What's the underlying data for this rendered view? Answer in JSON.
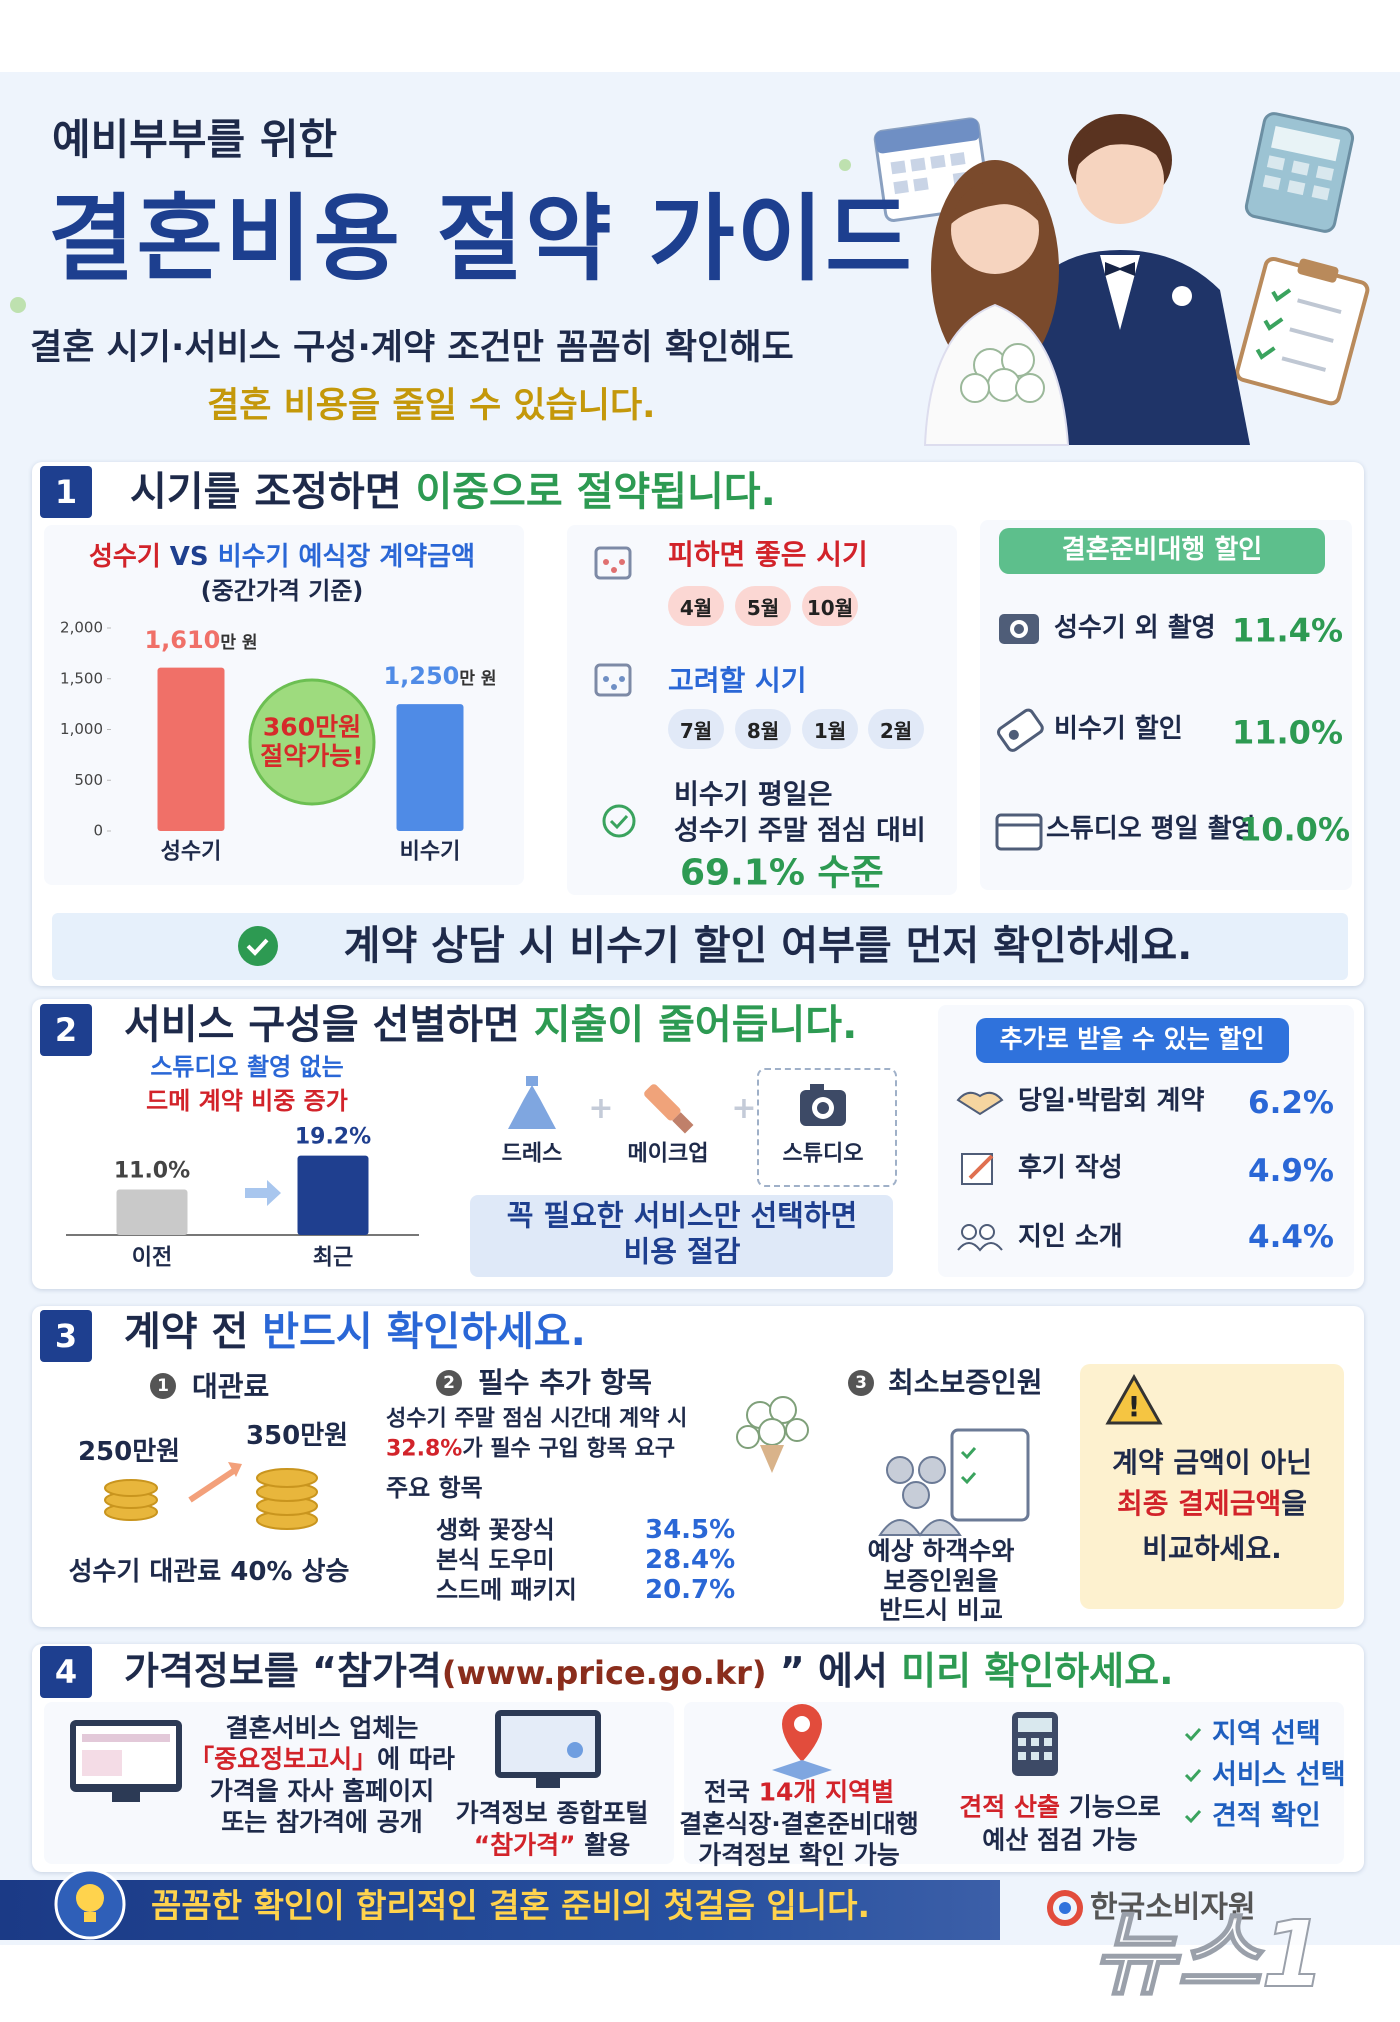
{
  "header": {
    "kicker": "예비부부를 위한",
    "title": "결혼비용 절약 가이드",
    "subtitle": [
      "결혼 시기·서비스 구성·계약 조건만 꼼꼼히 확인해도",
      "결혼 비용을 줄일 수 있습니다."
    ]
  },
  "section1": {
    "number": "1",
    "title": [
      "시기를 조정하면 ",
      "이중으로 절약됩니다."
    ],
    "chart": {
      "type": "bar",
      "title": [
        "성수기",
        " VS ",
        "비수기",
        " 예식장 계약금액"
      ],
      "subtitle": "(중간가격 기준)",
      "categories": [
        "성수기",
        "비수기"
      ],
      "values": [
        1610,
        1250
      ],
      "value_labels": [
        "1,610",
        "1,250"
      ],
      "unit": "만 원",
      "colors": [
        "#f07068",
        "#4f8be6"
      ],
      "ylim": [
        0,
        2000
      ],
      "yticks": [
        0,
        500,
        {
          "value": 1000,
          "label": "1,000"
        },
        {
          "value": 1500,
          "label": "1,500"
        },
        {
          "value": 2000,
          "label": "2,000"
        }
      ],
      "badge": [
        "360만원",
        "절약가능!"
      ]
    },
    "avoid": {
      "title": "피하면 좋은 시기",
      "months": [
        "4월",
        "5월",
        "10월"
      ]
    },
    "consider": {
      "title": "고려할 시기",
      "months": [
        "7월",
        "8월",
        "1월",
        "2월"
      ]
    },
    "weekday": {
      "text": [
        "비수기 평일은",
        "성수기 주말 점심 대비"
      ],
      "highlight": "69.1% 수준"
    },
    "agency": {
      "title": "결혼준비대행 할인",
      "items": [
        {
          "label": "성수기 외 촬영",
          "value": "11.4%"
        },
        {
          "label": "비수기 할인",
          "value": "11.0%"
        },
        {
          "label": "스튜디오 평일 촬영",
          "value": "10.0%"
        }
      ]
    },
    "note": "계약 상담 시 비수기 할인 여부를 먼저 확인하세요."
  },
  "section2": {
    "number": "2",
    "title": [
      "서비스 구성을 선별하면 ",
      "지출이 줄어듭니다."
    ],
    "chart": {
      "type": "bar",
      "title": [
        "스튜디오 촬영 없는",
        "드메 계약 비중 증가"
      ],
      "categories": [
        "이전",
        "최근"
      ],
      "values": [
        11.0,
        19.2
      ],
      "value_labels": [
        "11.0%",
        "19.2%"
      ],
      "colors": [
        "#c9c9c9",
        "#1f3f8f"
      ],
      "ylim": [
        0,
        22
      ]
    },
    "services": {
      "items": [
        "드레스",
        "메이크업",
        "스튜디오"
      ],
      "note": [
        "꼭 필요한 서비스만 선택하면",
        "비용 절감"
      ]
    },
    "extra": {
      "title": "추가로 받을 수 있는 할인",
      "items": [
        {
          "label": "당일·박람회 계약",
          "value": "6.2%"
        },
        {
          "label": "후기 작성",
          "value": "4.9%"
        },
        {
          "label": "지인 소개",
          "value": "4.4%"
        }
      ]
    }
  },
  "section3": {
    "number": "3",
    "title": [
      "계약 전 ",
      "반드시 확인하세요."
    ],
    "venue": {
      "number": "1",
      "label": "대관료",
      "before": "250만원",
      "after": "350만원",
      "caption": "성수기 대관료 40% 상승"
    },
    "extras": {
      "number": "2",
      "label": "필수 추가 항목",
      "desc": [
        "성수기 주말 점심 시간대 계약 시",
        "32.8%",
        "가 필수 구입 항목 요구"
      ],
      "sub": "주요 항목",
      "items": [
        {
          "label": "생화 꽃장식",
          "value": "34.5%"
        },
        {
          "label": "본식 도우미",
          "value": "28.4%"
        },
        {
          "label": "스드메 패키지",
          "value": "20.7%"
        }
      ]
    },
    "guarantee": {
      "number": "3",
      "label": "최소보증인원",
      "caption": [
        "예상 하객수와",
        "보증인원을",
        "반드시 비교"
      ]
    },
    "warning": {
      "text": [
        "계약 금액이 아닌",
        "최종 결제금액",
        "을",
        "비교하세요."
      ]
    }
  },
  "section4": {
    "number": "4",
    "title": [
      "가격정보를 “참가격",
      "(www.price.go.kr)",
      " ” 에서 ",
      "미리 확인하세요."
    ],
    "steps": [
      [
        "결혼서비스 업체는",
        "「중요정보고시」",
        "에 따라",
        "가격을 자사 홈페이지",
        "또는 참가격에 공개"
      ],
      [
        "가격정보 종합포털",
        "“참가격”",
        " 활용"
      ],
      [
        "전국 ",
        "14개 지역별",
        "결혼식장·결혼준비대행",
        "가격정보 확인 가능"
      ],
      [
        "견적 산출",
        " 기능으로",
        "예산 점검 가능"
      ]
    ],
    "checks": [
      "지역 선택",
      "서비스 선택",
      "견적 확인"
    ]
  },
  "footer": {
    "message": "꼼꼼한 확인이 합리적인 결혼 준비의 첫걸음 입니다.",
    "org": "한국소비자원",
    "watermark": "뉴스1"
  }
}
